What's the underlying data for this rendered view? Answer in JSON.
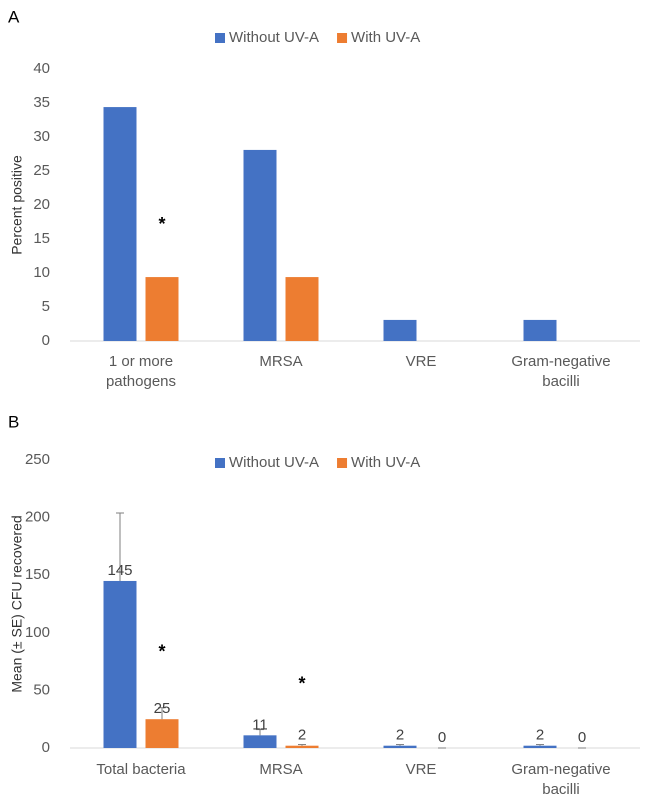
{
  "chart_data": [
    {
      "type": "bar",
      "panel_label": "A",
      "y_label": "Percent positive",
      "categories": [
        "1 or more pathogens",
        "MRSA",
        "VRE",
        "Gram-negative bacilli"
      ],
      "series": [
        {
          "name": "Without UV-A",
          "color": "#4472c4",
          "values": [
            34.4,
            28.1,
            3.1,
            3.1
          ]
        },
        {
          "name": "With UV-A",
          "color": "#ed7d31",
          "values": [
            9.4,
            9.4,
            0,
            0
          ]
        }
      ],
      "ylim": [
        0,
        40
      ],
      "yticks": [
        0,
        5,
        10,
        15,
        20,
        25,
        30,
        35,
        40
      ],
      "grid": false,
      "legend": "top",
      "annotations": [
        {
          "text": "*",
          "category": "1 or more pathogens"
        }
      ]
    },
    {
      "type": "bar",
      "panel_label": "B",
      "y_label": "Mean (± SE) CFU recovered",
      "categories": [
        "Total bacteria",
        "MRSA",
        "VRE",
        "Gram-negative bacilli"
      ],
      "series": [
        {
          "name": "Without UV-A",
          "color": "#4472c4",
          "values": [
            145,
            11,
            2,
            2
          ],
          "errors": [
            59,
            5,
            1,
            1
          ]
        },
        {
          "name": "With UV-A",
          "color": "#ed7d31",
          "values": [
            25,
            2,
            0,
            0
          ],
          "errors": [
            10,
            1,
            0,
            0
          ]
        }
      ],
      "ylim": [
        0,
        250
      ],
      "yticks": [
        0,
        50,
        100,
        150,
        200,
        250
      ],
      "grid": false,
      "legend": "top",
      "data_labels": true,
      "annotations": [
        {
          "text": "*",
          "category": "Total bacteria"
        },
        {
          "text": "*",
          "category": "MRSA"
        }
      ]
    }
  ]
}
